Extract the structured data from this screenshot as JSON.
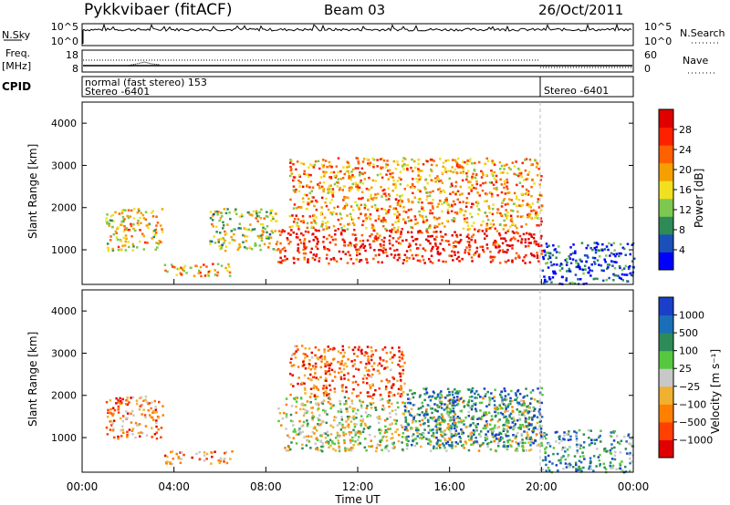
{
  "header": {
    "station": "Pykkvibaer (fitACF)",
    "beam": "Beam 03",
    "date": "26/Oct/2011"
  },
  "strip_panels": {
    "nsky_label": "N.Sky",
    "nsky_ticks": [
      "10^5",
      "10^0"
    ],
    "nsearch_label": "N.Search",
    "nsearch_ticks": [
      "10^5",
      "10^0"
    ],
    "freq_label_1": "Freq.",
    "freq_label_2": "[MHz]",
    "freq_ticks": [
      "18",
      "8"
    ],
    "nave_label": "Nave",
    "nave_ticks": [
      "60",
      "0"
    ],
    "cpid_label": "CPID",
    "cpid_segment_1_line1": "normal (fast stereo) 153",
    "cpid_segment_1_line2": "Stereo -6401",
    "cpid_segment_2": "Stereo -6401"
  },
  "colors": {
    "power_scale": [
      "#0000ff",
      "#1a50b8",
      "#2e8b57",
      "#7cc850",
      "#f0e020",
      "#f5a000",
      "#ff6000",
      "#ff2000",
      "#e00000"
    ],
    "velocity_scale": [
      "#1a3fc8",
      "#1a6fb8",
      "#2e8b57",
      "#55c840",
      "#c8c8c8",
      "#f0b030",
      "#ff8000",
      "#ff4000",
      "#e00000"
    ]
  },
  "chart_data": [
    {
      "type": "heatmap",
      "name": "power",
      "ylabel": "Slant Range [km]",
      "xlabel": "",
      "ylim": [
        180,
        4500
      ],
      "yticks": [
        "1000",
        "2000",
        "3000",
        "4000"
      ],
      "colorbar_label": "Power [dB]",
      "colorbar_ticks": [
        "4",
        "8",
        "12",
        "16",
        "20",
        "24",
        "28"
      ],
      "regions": [
        {
          "t0": 1.0,
          "t1": 3.5,
          "r0": 1000,
          "r1": 2000,
          "level": 0.55
        },
        {
          "t0": 3.5,
          "t1": 6.5,
          "r0": 400,
          "r1": 700,
          "level": 0.6
        },
        {
          "t0": 5.5,
          "t1": 8.5,
          "r0": 1000,
          "r1": 2000,
          "level": 0.45
        },
        {
          "t0": 8.5,
          "t1": 20.0,
          "r0": 700,
          "r1": 1500,
          "level": 0.9
        },
        {
          "t0": 9.0,
          "t1": 20.0,
          "r0": 1500,
          "r1": 3200,
          "level": 0.65
        },
        {
          "t0": 20.0,
          "t1": 24.0,
          "r0": 200,
          "r1": 1200,
          "level": 0.15
        }
      ]
    },
    {
      "type": "heatmap",
      "name": "velocity",
      "ylabel": "Slant Range [km]",
      "xlabel": "Time UT",
      "ylim": [
        180,
        4500
      ],
      "yticks": [
        "1000",
        "2000",
        "3000",
        "4000"
      ],
      "xticks": [
        "00:00",
        "04:00",
        "08:00",
        "12:00",
        "16:00",
        "20:00",
        "00:00"
      ],
      "colorbar_label": "Velocity [m s⁻¹]",
      "colorbar_ticks": [
        "1000",
        "500",
        "100",
        "25",
        "−25",
        "−100",
        "−500",
        "−1000"
      ],
      "regions": [
        {
          "t0": 1.0,
          "t1": 3.5,
          "r0": 1000,
          "r1": 2000,
          "level": 0.7
        },
        {
          "t0": 3.5,
          "t1": 6.5,
          "r0": 400,
          "r1": 700,
          "level": 0.7
        },
        {
          "t0": 8.5,
          "t1": 20.0,
          "r0": 700,
          "r1": 2000,
          "level": 0.5
        },
        {
          "t0": 9.0,
          "t1": 14.0,
          "r0": 2000,
          "r1": 3200,
          "level": 0.8
        },
        {
          "t0": 14.0,
          "t1": 20.0,
          "r0": 800,
          "r1": 2200,
          "level": 0.2
        },
        {
          "t0": 20.0,
          "t1": 24.0,
          "r0": 200,
          "r1": 1200,
          "level": 0.3
        }
      ]
    }
  ]
}
